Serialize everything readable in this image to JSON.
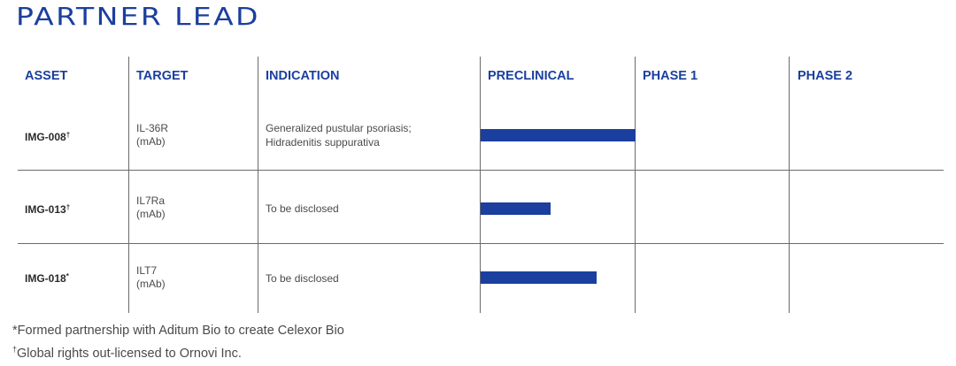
{
  "title": "PARTNER LEAD",
  "columns": {
    "asset": "ASSET",
    "target": "TARGET",
    "indication": "INDICATION",
    "preclinical": "PRECLINICAL",
    "phase1": "PHASE 1",
    "phase2": "PHASE 2"
  },
  "rows": [
    {
      "asset": "IMG-008",
      "asset_mark": "†",
      "target_line1": "IL-36R",
      "target_line2": "(mAb)",
      "indication_line1": "Generalized pustular psoriasis;",
      "indication_line2": "Hidradenitis suppurativa",
      "progress_fraction_of_preclinical": 1.0
    },
    {
      "asset": "IMG-013",
      "asset_mark": "†",
      "target_line1": "IL7Ra",
      "target_line2": "(mAb)",
      "indication_line1": "To be disclosed",
      "indication_line2": "",
      "progress_fraction_of_preclinical": 0.45
    },
    {
      "asset": "IMG-018",
      "asset_mark": "*",
      "target_line1": "ILT7",
      "target_line2": "(mAb)",
      "indication_line1": "To be disclosed",
      "indication_line2": "",
      "progress_fraction_of_preclinical": 0.75
    }
  ],
  "footnotes": {
    "first": "*Formed partnership with Aditum Bio to create Celexor Bio",
    "second_mark": "†",
    "second": "Global rights out-licensed to Ornovi Inc."
  },
  "colors": {
    "accent": "#1a3f9e",
    "divider": "#6b6b6b"
  }
}
